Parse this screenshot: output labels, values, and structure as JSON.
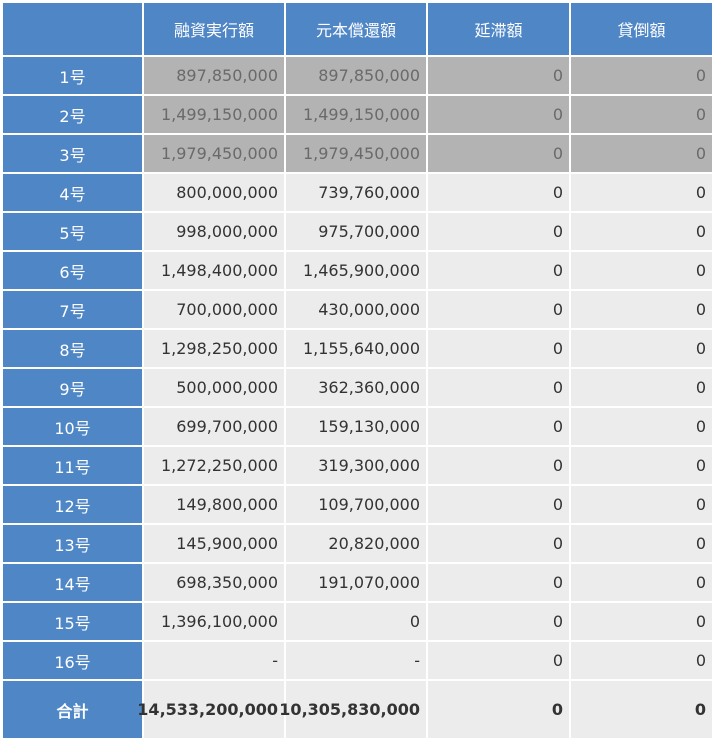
{
  "table": {
    "headers": [
      "",
      "融資実行額",
      "元本償還額",
      "延滞額",
      "貸倒額"
    ],
    "rows": [
      {
        "label": "1号",
        "executed": "897,850,000",
        "repaid": "897,850,000",
        "delinquent": "0",
        "written_off": "0",
        "closed": true
      },
      {
        "label": "2号",
        "executed": "1,499,150,000",
        "repaid": "1,499,150,000",
        "delinquent": "0",
        "written_off": "0",
        "closed": true
      },
      {
        "label": "3号",
        "executed": "1,979,450,000",
        "repaid": "1,979,450,000",
        "delinquent": "0",
        "written_off": "0",
        "closed": true
      },
      {
        "label": "4号",
        "executed": "800,000,000",
        "repaid": "739,760,000",
        "delinquent": "0",
        "written_off": "0",
        "closed": false
      },
      {
        "label": "5号",
        "executed": "998,000,000",
        "repaid": "975,700,000",
        "delinquent": "0",
        "written_off": "0",
        "closed": false
      },
      {
        "label": "6号",
        "executed": "1,498,400,000",
        "repaid": "1,465,900,000",
        "delinquent": "0",
        "written_off": "0",
        "closed": false
      },
      {
        "label": "7号",
        "executed": "700,000,000",
        "repaid": "430,000,000",
        "delinquent": "0",
        "written_off": "0",
        "closed": false
      },
      {
        "label": "8号",
        "executed": "1,298,250,000",
        "repaid": "1,155,640,000",
        "delinquent": "0",
        "written_off": "0",
        "closed": false
      },
      {
        "label": "9号",
        "executed": "500,000,000",
        "repaid": "362,360,000",
        "delinquent": "0",
        "written_off": "0",
        "closed": false
      },
      {
        "label": "10号",
        "executed": "699,700,000",
        "repaid": "159,130,000",
        "delinquent": "0",
        "written_off": "0",
        "closed": false
      },
      {
        "label": "11号",
        "executed": "1,272,250,000",
        "repaid": "319,300,000",
        "delinquent": "0",
        "written_off": "0",
        "closed": false
      },
      {
        "label": "12号",
        "executed": "149,800,000",
        "repaid": "109,700,000",
        "delinquent": "0",
        "written_off": "0",
        "closed": false
      },
      {
        "label": "13号",
        "executed": "145,900,000",
        "repaid": "20,820,000",
        "delinquent": "0",
        "written_off": "0",
        "closed": false
      },
      {
        "label": "14号",
        "executed": "698,350,000",
        "repaid": "191,070,000",
        "delinquent": "0",
        "written_off": "0",
        "closed": false
      },
      {
        "label": "15号",
        "executed": "1,396,100,000",
        "repaid": "0",
        "delinquent": "0",
        "written_off": "0",
        "closed": false
      },
      {
        "label": "16号",
        "executed": "-",
        "repaid": "-",
        "delinquent": "0",
        "written_off": "0",
        "closed": false
      }
    ],
    "total": {
      "label": "合計",
      "executed": "14,533,200,000",
      "repaid": "10,305,830,000",
      "delinquent": "0",
      "written_off": "0"
    }
  },
  "colors": {
    "header_bg": "#4f86c6",
    "closed_row_bg": "#b3b3b3",
    "row_bg": "#ececec"
  }
}
